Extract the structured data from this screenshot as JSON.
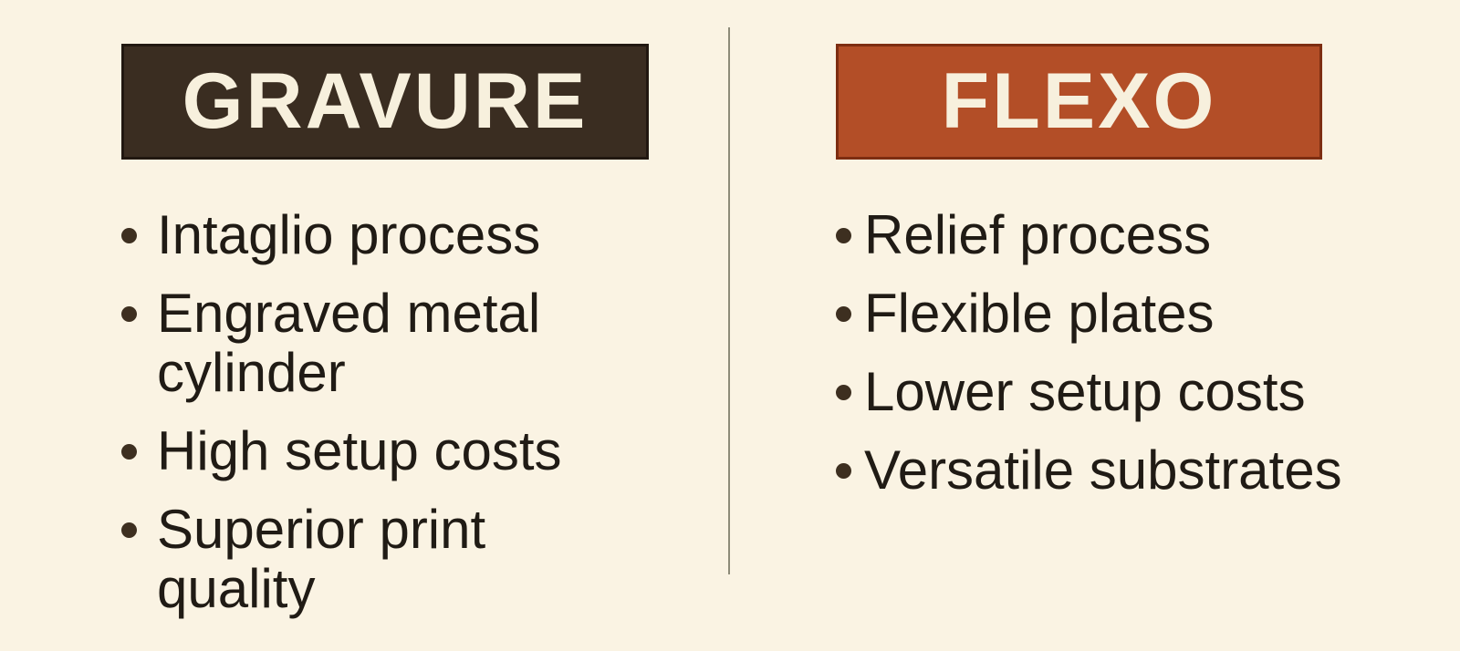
{
  "theme": {
    "bg": "#faf3e3",
    "divider": "#8d8b79",
    "gravure_bg": "#3a2d21",
    "gravure_border": "#211811",
    "flexo_bg": "#b34e27",
    "flexo_border": "#7d2d11",
    "header_text": "#f7f0dd",
    "body_text": "#201b15",
    "bullet_dot": "#3d2f20"
  },
  "columns": [
    {
      "id": "gravure",
      "title": "GRAVURE",
      "bullets": [
        "Intaglio process",
        "Engraved metal cylinder",
        "High setup costs",
        "Superior print quality"
      ]
    },
    {
      "id": "flexo",
      "title": "FLEXO",
      "bullets": [
        "Relief process",
        "Flexible plates",
        "Lower setup costs",
        "Versatile substrates"
      ]
    }
  ]
}
